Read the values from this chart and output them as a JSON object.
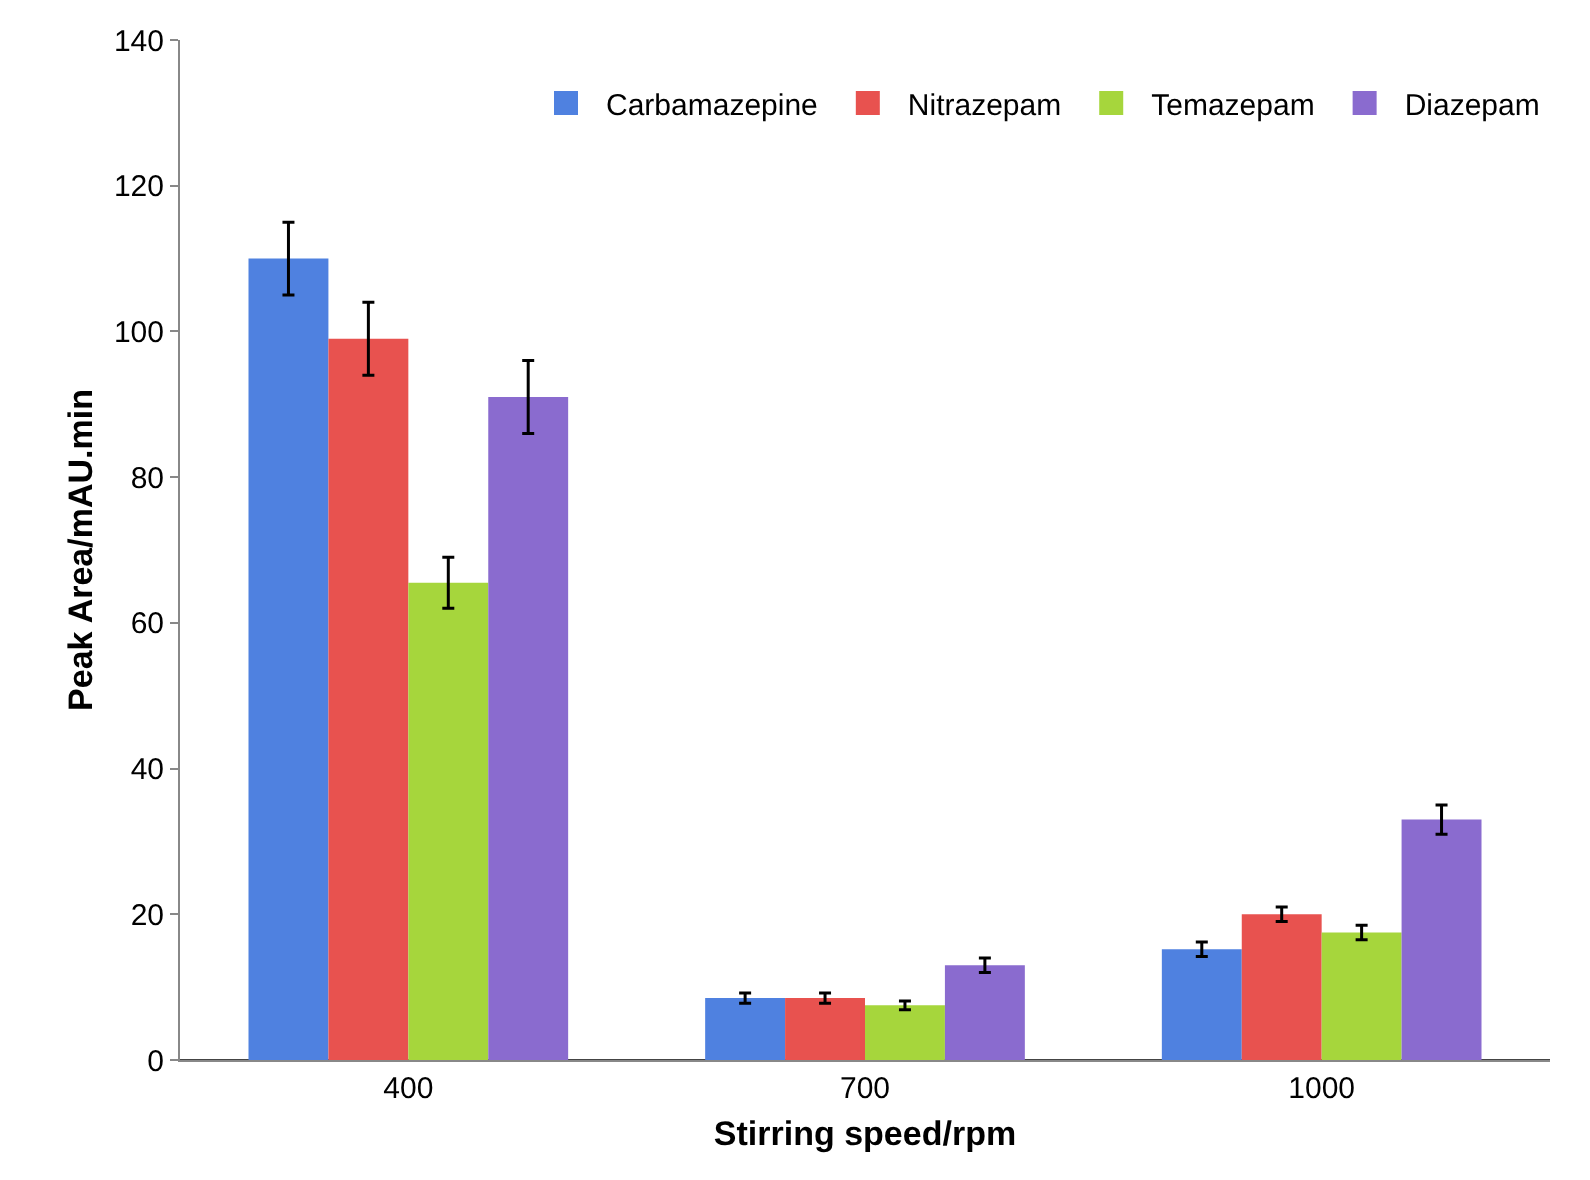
{
  "chart_data": {
    "type": "bar",
    "xlabel": "Stirring speed/rpm",
    "ylabel": "Peak Area/mAU.min",
    "categories": [
      "400",
      "700",
      "1000"
    ],
    "series": [
      {
        "name": "Carbamazepine",
        "color": "#4f81e0",
        "values": [
          110,
          8.5,
          15.2
        ],
        "errors": [
          5,
          0.7,
          1
        ]
      },
      {
        "name": "Nitrazepam",
        "color": "#e8524f",
        "values": [
          99,
          8.5,
          20
        ],
        "errors": [
          5,
          0.7,
          1
        ]
      },
      {
        "name": "Temazepam",
        "color": "#a6d63c",
        "values": [
          65.5,
          7.5,
          17.5
        ],
        "errors": [
          3.5,
          0.6,
          1
        ]
      },
      {
        "name": "Diazepam",
        "color": "#8a6bcf",
        "values": [
          91,
          13,
          33
        ],
        "errors": [
          5,
          1,
          2
        ]
      }
    ],
    "ylim": [
      0,
      140
    ],
    "yticks": [
      0,
      20,
      40,
      60,
      80,
      100,
      120,
      140
    ],
    "grid": false,
    "legend": "top right"
  }
}
